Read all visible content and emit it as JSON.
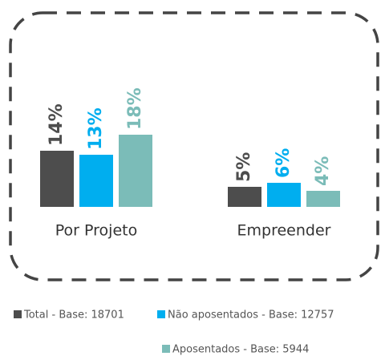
{
  "chart_data": {
    "type": "bar",
    "categories": [
      "Por Projeto",
      "Empreender"
    ],
    "series": [
      {
        "name": "Total - Base: 18701",
        "color": "#4d4d4d",
        "values": [
          14,
          5
        ],
        "value_labels": [
          "14%",
          "5%"
        ]
      },
      {
        "name": "Não aposentados - Base: 12757",
        "color": "#00aeef",
        "values": [
          13,
          6
        ],
        "value_labels": [
          "13%",
          "6%"
        ]
      },
      {
        "name": "Aposentados - Base: 5944",
        "color": "#7bbcb8",
        "values": [
          18,
          4
        ],
        "value_labels": [
          "18%",
          "4%"
        ]
      }
    ]
  }
}
